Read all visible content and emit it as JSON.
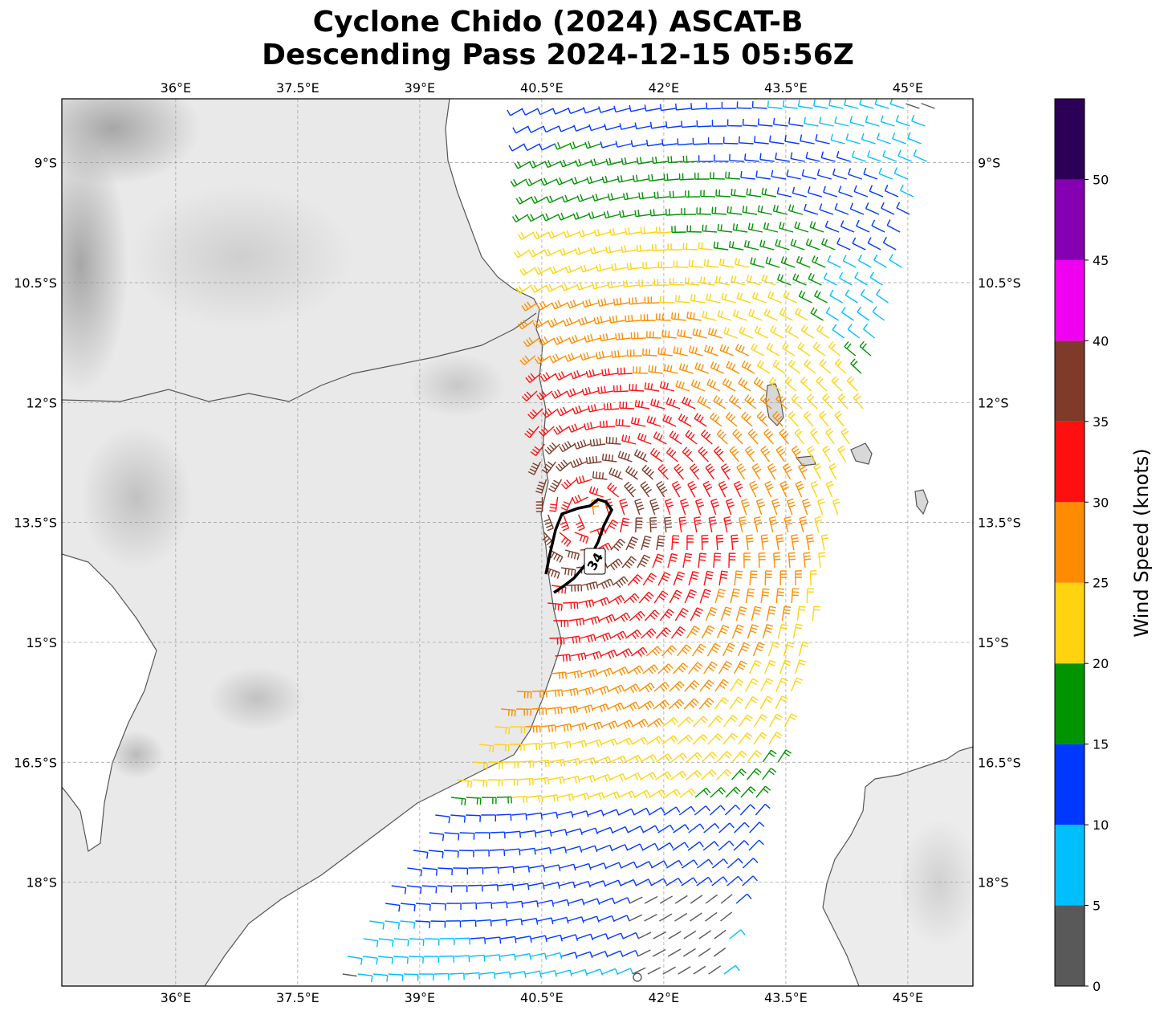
{
  "title": {
    "line1": "Cyclone Chido (2024) ASCAT-B",
    "line2": "Descending Pass 2024-12-15 05:56Z"
  },
  "map": {
    "lon_range": [
      34.6,
      45.8
    ],
    "lat_range": [
      -19.3,
      -8.2
    ],
    "lon_ticks": [
      "36°E",
      "37.5°E",
      "39°E",
      "40.5°E",
      "42°E",
      "43.5°E",
      "45°E"
    ],
    "lon_tick_values": [
      36,
      37.5,
      39,
      40.5,
      42,
      43.5,
      45
    ],
    "lat_ticks": [
      "9°S",
      "10.5°S",
      "12°S",
      "13.5°S",
      "15°S",
      "16.5°S",
      "18°S"
    ],
    "lat_tick_values": [
      -9,
      -10.5,
      -12,
      -13.5,
      -15,
      -16.5,
      -18
    ],
    "gridlines": true,
    "background": "grayscale terrain",
    "contour_label": "34"
  },
  "colorbar": {
    "label": "Wind Speed (knots)",
    "ticks": [
      "0",
      "5",
      "10",
      "15",
      "20",
      "25",
      "30",
      "35",
      "40",
      "45",
      "50"
    ],
    "bins": [
      {
        "min": 0,
        "max": 5,
        "color": "#595959"
      },
      {
        "min": 5,
        "max": 10,
        "color": "#00bfff"
      },
      {
        "min": 10,
        "max": 15,
        "color": "#0038ff"
      },
      {
        "min": 15,
        "max": 20,
        "color": "#009400"
      },
      {
        "min": 20,
        "max": 25,
        "color": "#ffd30f"
      },
      {
        "min": 25,
        "max": 30,
        "color": "#ff8c00"
      },
      {
        "min": 30,
        "max": 35,
        "color": "#ff1010"
      },
      {
        "min": 35,
        "max": 40,
        "color": "#7f3a2a"
      },
      {
        "min": 40,
        "max": 45,
        "color": "#f000f0"
      },
      {
        "min": 45,
        "max": 50,
        "color": "#8400b0"
      },
      {
        "min": 50,
        "max": 55,
        "color": "#2d0058"
      }
    ]
  }
}
